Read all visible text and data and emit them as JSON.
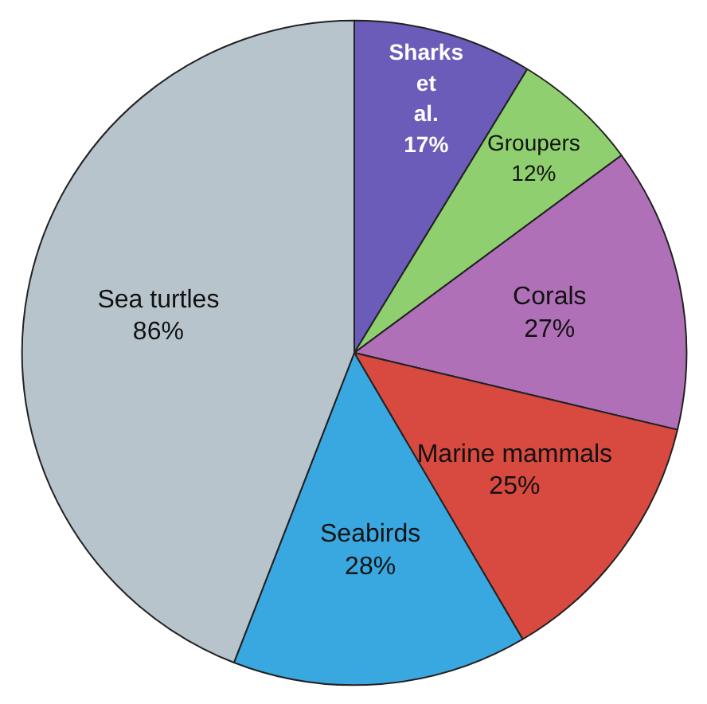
{
  "chart_data": {
    "type": "pie",
    "categories": [
      "Sharks et al.",
      "Groupers",
      "Corals",
      "Marine mammals",
      "Seabirds",
      "Sea turtles"
    ],
    "values": [
      17,
      12,
      27,
      25,
      28,
      86
    ],
    "value_labels": [
      "17%",
      "12%",
      "27%",
      "25%",
      "28%",
      "86%"
    ],
    "colors": [
      "#6a5cb8",
      "#8fcf70",
      "#b070b8",
      "#d84a40",
      "#3aa8e0",
      "#b8c4cc"
    ]
  }
}
